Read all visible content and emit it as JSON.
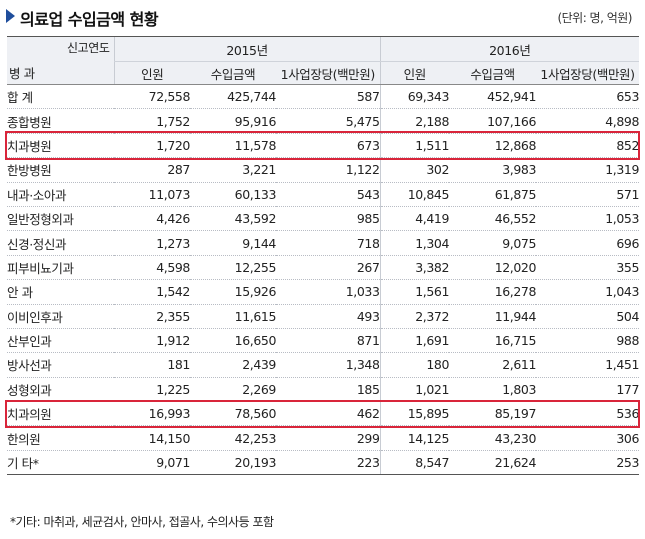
{
  "title": "의료업 수입금액 현황",
  "unit": "(단위: 명, 억원)",
  "header": {
    "col_group_label": "신고연도",
    "row_group_label": "병 과",
    "years": [
      "2015년",
      "2016년"
    ],
    "sub_columns": [
      "인원",
      "수입금액",
      "1사업장당(백만원)"
    ]
  },
  "rows": [
    {
      "label": "합  계",
      "v": [
        "72,558",
        "425,744",
        "587",
        "69,343",
        "452,941",
        "653"
      ],
      "highlight": false
    },
    {
      "label": "종합병원",
      "v": [
        "1,752",
        "95,916",
        "5,475",
        "2,188",
        "107,166",
        "4,898"
      ],
      "highlight": false
    },
    {
      "label": "치과병원",
      "v": [
        "1,720",
        "11,578",
        "673",
        "1,511",
        "12,868",
        "852"
      ],
      "highlight": true
    },
    {
      "label": "한방병원",
      "v": [
        "287",
        "3,221",
        "1,122",
        "302",
        "3,983",
        "1,319"
      ],
      "highlight": false
    },
    {
      "label": "내과·소아과",
      "v": [
        "11,073",
        "60,133",
        "543",
        "10,845",
        "61,875",
        "571"
      ],
      "highlight": false
    },
    {
      "label": "일반정형외과",
      "v": [
        "4,426",
        "43,592",
        "985",
        "4,419",
        "46,552",
        "1,053"
      ],
      "highlight": false
    },
    {
      "label": "신경·정신과",
      "v": [
        "1,273",
        "9,144",
        "718",
        "1,304",
        "9,075",
        "696"
      ],
      "highlight": false
    },
    {
      "label": "피부비뇨기과",
      "v": [
        "4,598",
        "12,255",
        "267",
        "3,382",
        "12,020",
        "355"
      ],
      "highlight": false
    },
    {
      "label": "안  과",
      "v": [
        "1,542",
        "15,926",
        "1,033",
        "1,561",
        "16,278",
        "1,043"
      ],
      "highlight": false
    },
    {
      "label": "이비인후과",
      "v": [
        "2,355",
        "11,615",
        "493",
        "2,372",
        "11,944",
        "504"
      ],
      "highlight": false
    },
    {
      "label": "산부인과",
      "v": [
        "1,912",
        "16,650",
        "871",
        "1,691",
        "16,715",
        "988"
      ],
      "highlight": false
    },
    {
      "label": "방사선과",
      "v": [
        "181",
        "2,439",
        "1,348",
        "180",
        "2,611",
        "1,451"
      ],
      "highlight": false
    },
    {
      "label": "성형외과",
      "v": [
        "1,225",
        "2,269",
        "185",
        "1,021",
        "1,803",
        "177"
      ],
      "highlight": false
    },
    {
      "label": "치과의원",
      "v": [
        "16,993",
        "78,560",
        "462",
        "15,895",
        "85,197",
        "536"
      ],
      "highlight": true
    },
    {
      "label": "한의원",
      "v": [
        "14,150",
        "42,253",
        "299",
        "14,125",
        "43,230",
        "306"
      ],
      "highlight": false
    },
    {
      "label": "기  타*",
      "v": [
        "9,071",
        "20,193",
        "223",
        "8,547",
        "21,624",
        "253"
      ],
      "highlight": false
    }
  ],
  "footnote": "*기타: 마취과, 세균검사, 안마사, 접골사, 수의사등 포함",
  "colors": {
    "accent": "#1f4e9c",
    "highlight": "#d9253a",
    "header_bg": "#eef0f4"
  }
}
